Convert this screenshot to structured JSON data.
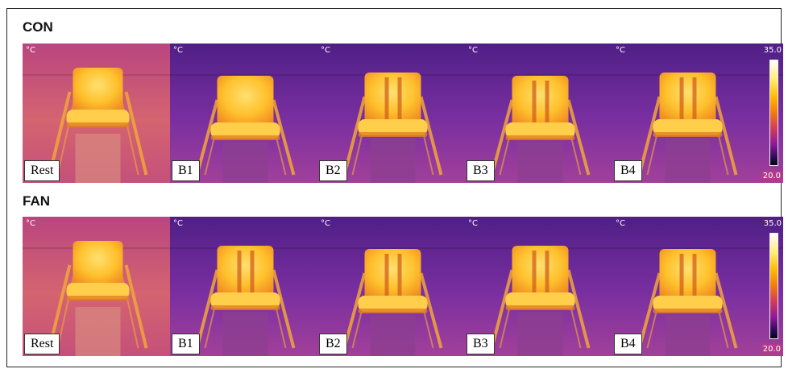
{
  "rows": [
    {
      "label": "CON",
      "panels": [
        {
          "tag": "Rest",
          "unit": "°C"
        },
        {
          "tag": "B1",
          "unit": "°C"
        },
        {
          "tag": "B2",
          "unit": "°C"
        },
        {
          "tag": "B3",
          "unit": "°C"
        },
        {
          "tag": "B4",
          "unit": "°C"
        }
      ],
      "scale": {
        "max": "35.0",
        "min": "20.0"
      }
    },
    {
      "label": "FAN",
      "panels": [
        {
          "tag": "Rest",
          "unit": "°C"
        },
        {
          "tag": "B1",
          "unit": "°C"
        },
        {
          "tag": "B2",
          "unit": "°C"
        },
        {
          "tag": "B3",
          "unit": "°C"
        },
        {
          "tag": "B4",
          "unit": "°C"
        }
      ],
      "scale": {
        "max": "35.0",
        "min": "20.0"
      }
    }
  ],
  "colors": {
    "background_rest": "#c74f7a",
    "background_exercise": "#6b2a9a",
    "seat_hot": "#ffcc3a",
    "seat_warm": "#f39a22"
  }
}
